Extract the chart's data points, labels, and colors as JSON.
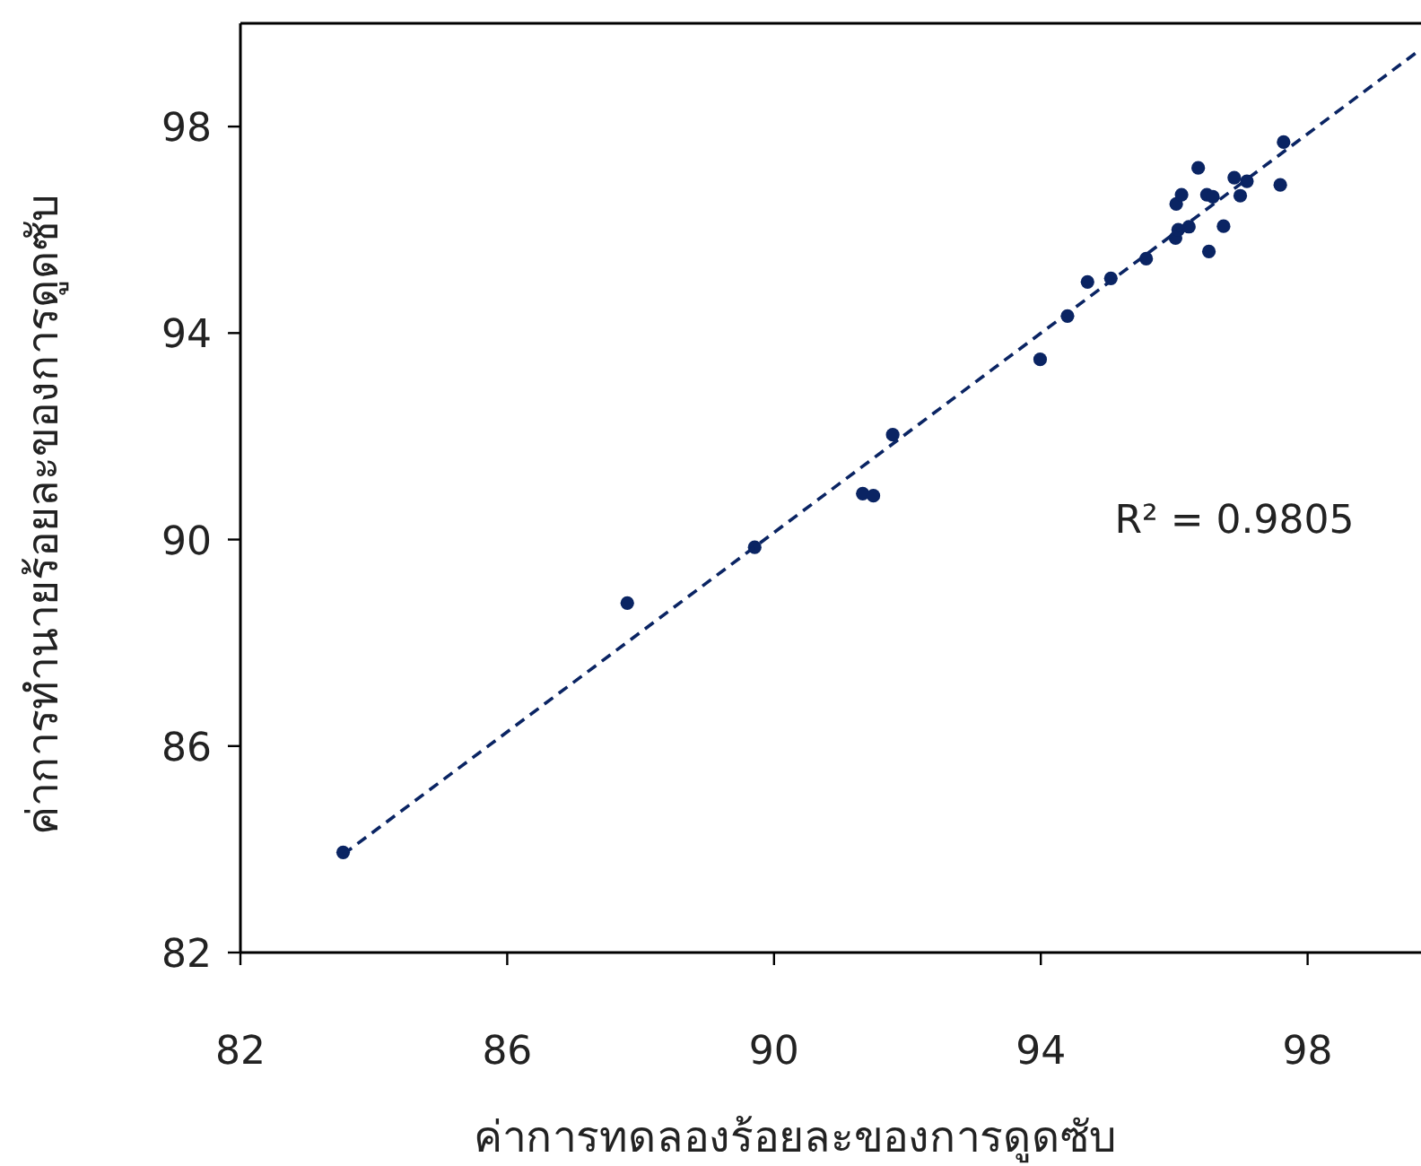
{
  "chart_data": {
    "type": "scatter",
    "xlabel": "ค่าการทดลองร้อยละของการดูดซับ",
    "ylabel": "ค่าการทำนายร้อยละของการดูดซับ",
    "annotations": [
      "R² = 0.9805"
    ],
    "xlim": [
      82,
      99.7
    ],
    "ylim": [
      82,
      100
    ],
    "xticks": [
      82,
      86,
      90,
      94,
      98
    ],
    "yticks": [
      82,
      86,
      90,
      94,
      98
    ],
    "grid": false,
    "series": [
      {
        "color": "#0a2463",
        "marker": "circle",
        "x": [
          83.54,
          87.8,
          89.71,
          91.33,
          91.49,
          91.78,
          93.99,
          94.4,
          94.7,
          95.05,
          95.58,
          96.02,
          96.06,
          96.22,
          96.03,
          96.11,
          96.36,
          96.49,
          96.58,
          96.52,
          96.74,
          96.9,
          97.09,
          96.99,
          97.59,
          97.64
        ],
        "values": [
          83.94,
          88.77,
          89.85,
          90.89,
          90.85,
          92.03,
          93.49,
          94.33,
          94.99,
          95.06,
          95.44,
          95.84,
          96.0,
          96.06,
          96.5,
          96.68,
          97.2,
          96.68,
          96.64,
          95.58,
          96.07,
          97.01,
          96.94,
          96.66,
          96.87,
          97.7
        ]
      },
      {
        "type": "line",
        "color": "#0a2463",
        "marker": "none",
        "line_style": "dashed",
        "x": [
          83.54,
          99.7
        ],
        "values": [
          83.9,
          99.5
        ]
      }
    ]
  }
}
